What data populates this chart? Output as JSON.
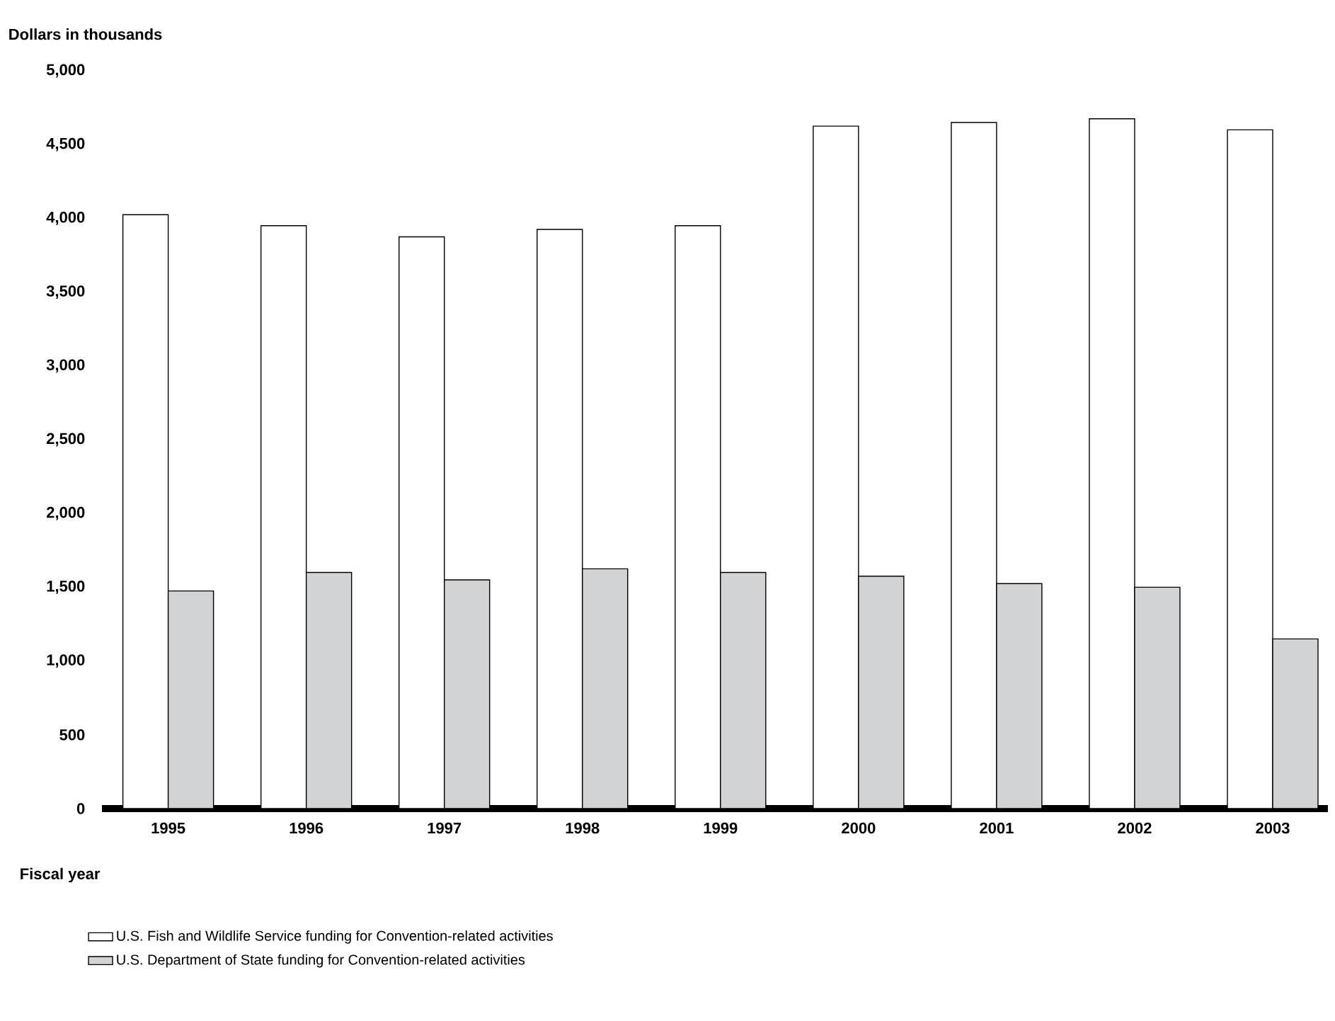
{
  "chart_data": {
    "type": "bar",
    "ylabel": "Dollars in thousands",
    "xlabel": "Fiscal year",
    "categories": [
      "1995",
      "1996",
      "1997",
      "1998",
      "1999",
      "2000",
      "2001",
      "2002",
      "2003"
    ],
    "series": [
      {
        "name": "U.S. Fish and Wildlife Service funding for Convention-related activities",
        "color": "#ffffff",
        "values": [
          4025,
          3950,
          3875,
          3925,
          3950,
          4625,
          4650,
          4675,
          4600
        ]
      },
      {
        "name": "U.S. Department of State funding for Convention-related activities",
        "color": "#d1d3d4",
        "values": [
          1475,
          1600,
          1550,
          1625,
          1600,
          1575,
          1525,
          1500,
          1150
        ]
      }
    ],
    "ylim": [
      0,
      5000
    ],
    "yticks": [
      0,
      500,
      {
        "value": 1000,
        "label": "1,000"
      },
      {
        "value": 1500,
        "label": "1,500"
      },
      {
        "value": 2000,
        "label": "2,000"
      },
      {
        "value": 2500,
        "label": "2,500"
      },
      {
        "value": 3000,
        "label": "3,000"
      },
      {
        "value": 3500,
        "label": "3,500"
      },
      {
        "value": 4000,
        "label": "4,000"
      },
      {
        "value": 4500,
        "label": "4,500"
      },
      {
        "value": 5000,
        "label": "5,000"
      }
    ],
    "legend": "bottom"
  }
}
